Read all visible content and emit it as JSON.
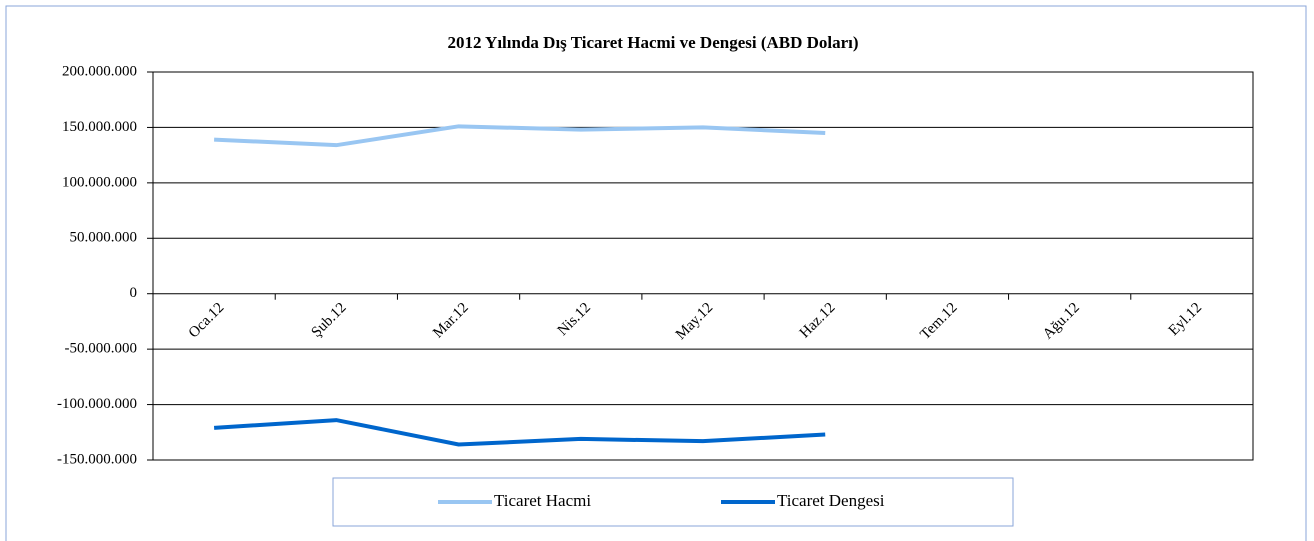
{
  "chart_data": {
    "type": "line",
    "title": "2012 Yılında Dış Ticaret Hacmi ve Dengesi (ABD Doları)",
    "categories": [
      "Oca.12",
      "Şub.12",
      "Mar.12",
      "Nis.12",
      "May.12",
      "Haz.12",
      "Tem.12",
      "Ağu.12",
      "Eyl.12"
    ],
    "series": [
      {
        "name": "Ticaret Hacmi",
        "color": "#99c6f2",
        "values": [
          139000000,
          134000000,
          151000000,
          148000000,
          150000000,
          145000000,
          null,
          null,
          null
        ]
      },
      {
        "name": "Ticaret Dengesi",
        "color": "#0066cc",
        "values": [
          -121000000,
          -114000000,
          -136000000,
          -131000000,
          -133000000,
          -127000000,
          null,
          null,
          null
        ]
      }
    ],
    "ylim": [
      -150000000,
      200000000
    ],
    "yticks": [
      {
        "value": -150000000,
        "label": "-150.000.000"
      },
      {
        "value": -100000000,
        "label": "-100.000.000"
      },
      {
        "value": -50000000,
        "label": "-50.000.000"
      },
      0,
      {
        "value": 50000000,
        "label": "50.000.000"
      },
      {
        "value": 100000000,
        "label": "100.000.000"
      },
      {
        "value": 150000000,
        "label": "150.000.000"
      },
      {
        "value": 200000000,
        "label": "200.000.000"
      }
    ],
    "grid": true,
    "legend": "bottom"
  }
}
